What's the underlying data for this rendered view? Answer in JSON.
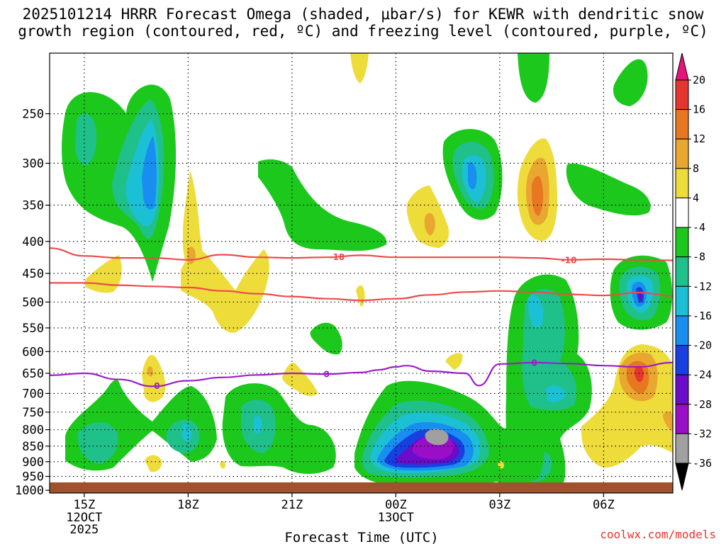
{
  "chart_data": {
    "type": "heatmap",
    "title_line1": "2025101214 HRRR Forecast Omega (shaded, μbar/s) for KEWR with dendritic snow",
    "title_line2": "growth region (contoured, red, ºC) and freezing level (contoured, purple, ºC)",
    "xlabel": "Forecast Time (UTC)",
    "x_ticks": [
      {
        "hour": 15,
        "label": "15Z",
        "sub1": "12OCT",
        "sub2": "2025"
      },
      {
        "hour": 18,
        "label": "18Z",
        "sub1": "",
        "sub2": ""
      },
      {
        "hour": 21,
        "label": "21Z",
        "sub1": "",
        "sub2": ""
      },
      {
        "hour": 24,
        "label": "00Z",
        "sub1": "13OCT",
        "sub2": ""
      },
      {
        "hour": 27,
        "label": "03Z",
        "sub1": "",
        "sub2": ""
      },
      {
        "hour": 30,
        "label": "06Z",
        "sub1": "",
        "sub2": ""
      }
    ],
    "xlim": [
      14,
      32
    ],
    "y_ticks": [
      250,
      300,
      350,
      400,
      450,
      500,
      550,
      600,
      650,
      700,
      750,
      800,
      850,
      900,
      950,
      1000
    ],
    "ylim": [
      200,
      1010
    ],
    "y_scale": "log",
    "colorbar": {
      "labels": [
        "20",
        "16",
        "12",
        "8",
        "4",
        "-4",
        "-8",
        "-12",
        "-16",
        "-20",
        "-24",
        "-28",
        "-32",
        "-36"
      ],
      "colors": [
        "#e8127a",
        "#e5352e",
        "#e87722",
        "#e9a630",
        "#eddc3a",
        "#ffffff",
        "#1cc81c",
        "#20c08a",
        "#1cc0d4",
        "#188ef0",
        "#1840e0",
        "#6a0cc8",
        "#9a0ec8",
        "#a0a0a0",
        "#000000"
      ]
    },
    "contours": [
      {
        "name": "dgz-top",
        "label": "-18",
        "color": "#ef4a4a",
        "hours": [
          14.0,
          15.0,
          16.0,
          17.0,
          18.0,
          19.0,
          20.0,
          21.0,
          22.0,
          23.0,
          24.0,
          25.0,
          26.0,
          27.0,
          28.0,
          29.0,
          30.0,
          31.0,
          32.0
        ],
        "pressure": [
          410,
          422,
          425,
          425,
          428,
          420,
          424,
          425,
          424,
          421,
          424,
          424,
          424,
          424,
          425,
          428,
          427,
          428,
          429
        ],
        "label_hours": [
          22.3,
          29.0
        ]
      },
      {
        "name": "dgz-bottom",
        "label": "",
        "color": "#ef4a4a",
        "hours": [
          14.0,
          15.0,
          16.0,
          17.0,
          18.0,
          19.0,
          20.0,
          21.0,
          22.0,
          23.0,
          24.0,
          25.0,
          26.0,
          27.0,
          28.0,
          29.0,
          30.0,
          31.0,
          32.0
        ],
        "pressure": [
          466,
          466,
          470,
          472,
          474,
          480,
          485,
          490,
          494,
          497,
          494,
          487,
          482,
          480,
          482,
          486,
          488,
          483,
          489
        ],
        "label_hours": []
      },
      {
        "name": "freezing-level",
        "label": "0",
        "color": "#9a1ec8",
        "hours": [
          14.0,
          15.0,
          16.0,
          17.0,
          18.0,
          19.0,
          20.0,
          21.0,
          22.0,
          23.0,
          23.5,
          24.0,
          24.3,
          25.0,
          26.0,
          26.4,
          27.0,
          28.0,
          29.0,
          30.0,
          31.0,
          32.0
        ],
        "pressure": [
          655,
          650,
          665,
          682,
          668,
          660,
          654,
          650,
          652,
          648,
          642,
          635,
          632,
          645,
          650,
          680,
          628,
          625,
          627,
          632,
          635,
          625
        ],
        "label_hours": [
          17.1,
          22.0,
          28.0
        ]
      }
    ],
    "credit": "coolwx.com/models"
  }
}
